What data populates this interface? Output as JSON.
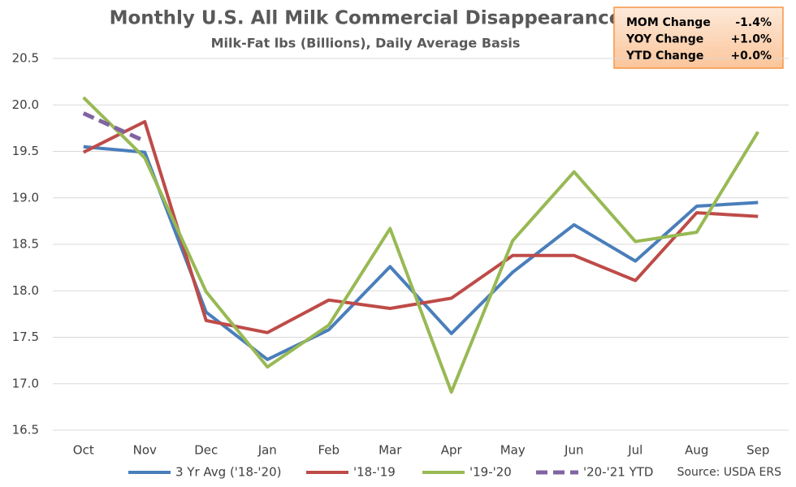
{
  "chart_data": {
    "type": "line",
    "title": "Monthly U.S. All Milk Commercial Disappearance",
    "subtitle": "Milk-Fat lbs (Billions), Daily Average Basis",
    "categories": [
      "Oct",
      "Nov",
      "Dec",
      "Jan",
      "Feb",
      "Mar",
      "Apr",
      "May",
      "Jun",
      "Jul",
      "Aug",
      "Sep"
    ],
    "series": [
      {
        "name": "3 Yr Avg ('18-'20)",
        "color": "#4a7ebb",
        "values": [
          19.55,
          19.49,
          17.77,
          17.26,
          17.58,
          18.26,
          17.54,
          18.2,
          18.71,
          18.32,
          18.91,
          18.95
        ]
      },
      {
        "name": "'18-'19",
        "color": "#be4b48",
        "values": [
          19.49,
          19.82,
          17.68,
          17.55,
          17.9,
          17.81,
          17.92,
          18.38,
          18.38,
          18.11,
          18.84,
          18.8
        ]
      },
      {
        "name": "'19-'20",
        "color": "#98b954",
        "values": [
          20.08,
          19.43,
          17.99,
          17.18,
          17.63,
          18.67,
          16.91,
          18.54,
          19.28,
          18.53,
          18.63,
          19.71
        ]
      },
      {
        "name": "'20-'21 YTD",
        "color": "#8064a2",
        "dashed": true,
        "values": [
          19.91,
          19.61,
          null,
          null,
          null,
          null,
          null,
          null,
          null,
          null,
          null,
          null
        ]
      }
    ],
    "ylim": [
      16.5,
      20.5
    ],
    "yticks": [
      16.5,
      {
        "value": 17,
        "label": "17.0"
      },
      17.5,
      {
        "value": 18,
        "label": "18.0"
      },
      18.5,
      {
        "value": 19,
        "label": "19.0"
      },
      19.5,
      {
        "value": 20,
        "label": "20.0"
      },
      20.5
    ],
    "grid": true,
    "legend": "bottom",
    "source": "Source: USDA ERS",
    "summary_box": [
      {
        "label": "MOM Change",
        "value": "-1.4%"
      },
      {
        "label": "YOY Change",
        "value": "+1.0%"
      },
      {
        "label": "YTD Change",
        "value": "+0.0%"
      }
    ]
  }
}
